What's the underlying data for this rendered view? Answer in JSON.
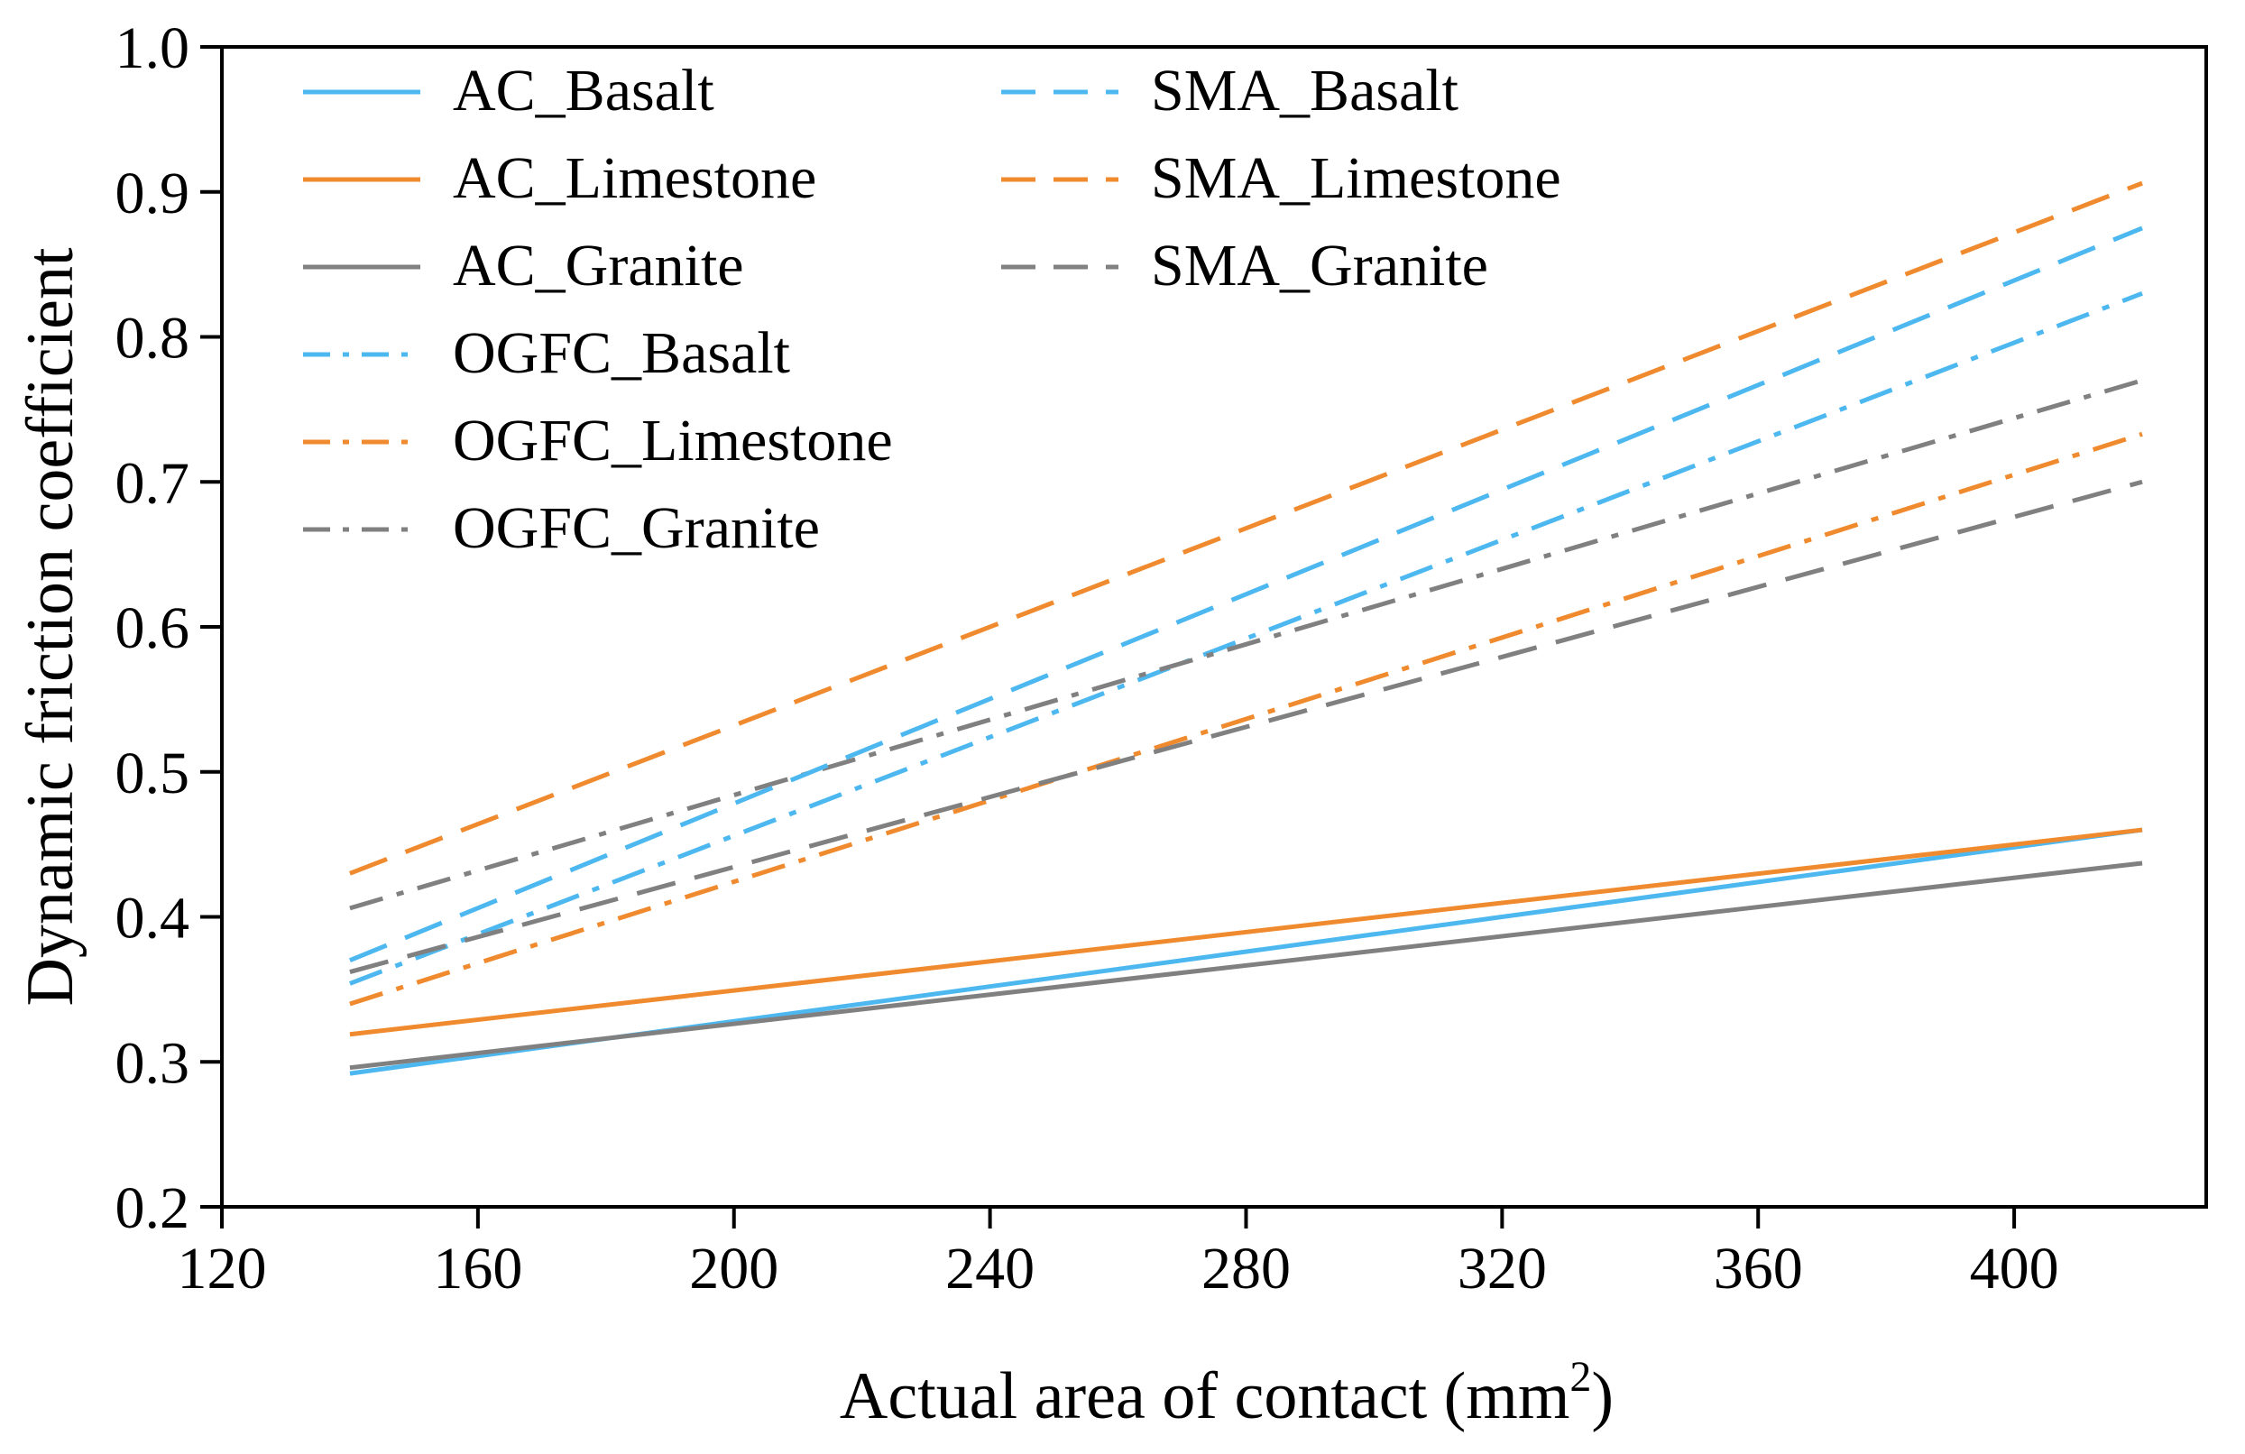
{
  "chart_data": {
    "type": "line",
    "title": "",
    "xlabel": "Actual area of contact (mm",
    "xlabel_sup": "2",
    "xlabel_tail": ")",
    "ylabel": "Dynamic friction coefficient",
    "xlim": [
      120,
      430
    ],
    "ylim": [
      0.2,
      1.0
    ],
    "xticks": [
      120,
      160,
      200,
      240,
      280,
      320,
      360,
      400
    ],
    "yticks": [
      "0.2",
      "0.3",
      "0.4",
      "0.5",
      "0.6",
      "0.7",
      "0.8",
      "0.9",
      "1.0"
    ],
    "grid": false,
    "legend_position": "top-left",
    "x": [
      140,
      420
    ],
    "series": [
      {
        "name": "AC_Basalt",
        "values": [
          0.292,
          0.46
        ],
        "color": "#4db8f0",
        "style": "solid"
      },
      {
        "name": "AC_Limestone",
        "values": [
          0.319,
          0.46
        ],
        "color": "#f08a2e",
        "style": "solid"
      },
      {
        "name": "AC_Granite",
        "values": [
          0.296,
          0.437
        ],
        "color": "#808080",
        "style": "solid"
      },
      {
        "name": "OGFC_Basalt",
        "values": [
          0.354,
          0.83
        ],
        "color": "#4db8f0",
        "style": "dashdot"
      },
      {
        "name": "OGFC_Limestone",
        "values": [
          0.34,
          0.733
        ],
        "color": "#f08a2e",
        "style": "dashdot"
      },
      {
        "name": "OGFC_Granite",
        "values": [
          0.406,
          0.77
        ],
        "color": "#808080",
        "style": "dashdot"
      },
      {
        "name": "SMA_Basalt",
        "values": [
          0.37,
          0.875
        ],
        "color": "#4db8f0",
        "style": "dashed"
      },
      {
        "name": "SMA_Limestone",
        "values": [
          0.43,
          0.906
        ],
        "color": "#f08a2e",
        "style": "dashed"
      },
      {
        "name": "SMA_Granite",
        "values": [
          0.362,
          0.7
        ],
        "color": "#808080",
        "style": "dashed"
      }
    ]
  }
}
